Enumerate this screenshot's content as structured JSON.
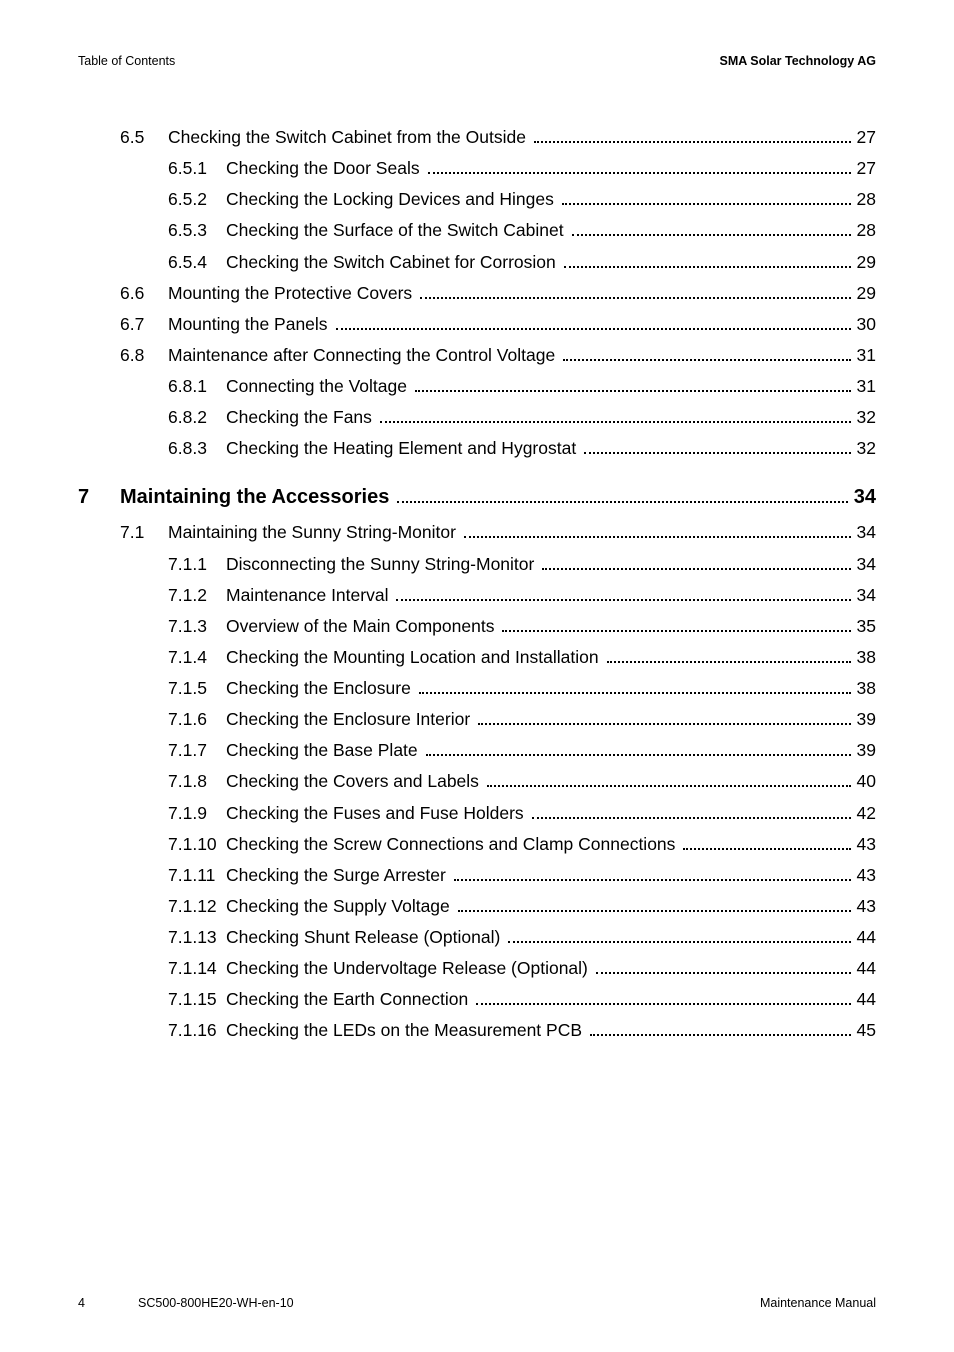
{
  "header": {
    "left": "Table of Contents",
    "right": "SMA Solar Technology AG"
  },
  "footer": {
    "page_number": "4",
    "doc_id": "SC500-800HE20-WH-en-10",
    "manual": "Maintenance Manual"
  },
  "colors": {
    "text": "#000000",
    "background": "#ffffff",
    "dots": "#000000"
  },
  "typography": {
    "body_fontsize_pt": 13,
    "heading_fontsize_pt": 15,
    "header_footer_fontsize_pt": 9.5,
    "font_family": "sans-serif",
    "heading_weight": "bold"
  },
  "toc": [
    {
      "level": 2,
      "num": "6.5",
      "title": "Checking the Switch Cabinet from the Outside",
      "page": "27"
    },
    {
      "level": 3,
      "num": "6.5.1",
      "title": "Checking the Door Seals",
      "page": "27"
    },
    {
      "level": 3,
      "num": "6.5.2",
      "title": "Checking the Locking Devices and Hinges",
      "page": "28"
    },
    {
      "level": 3,
      "num": "6.5.3",
      "title": "Checking the Surface of the Switch Cabinet",
      "page": "28"
    },
    {
      "level": 3,
      "num": "6.5.4",
      "title": "Checking the Switch Cabinet for Corrosion",
      "page": "29"
    },
    {
      "level": 2,
      "num": "6.6",
      "title": "Mounting the Protective Covers",
      "page": "29"
    },
    {
      "level": 2,
      "num": "6.7",
      "title": "Mounting the Panels",
      "page": "30"
    },
    {
      "level": 2,
      "num": "6.8",
      "title": "Maintenance after Connecting the Control Voltage",
      "page": "31"
    },
    {
      "level": 3,
      "num": "6.8.1",
      "title": "Connecting the Voltage",
      "page": "31"
    },
    {
      "level": 3,
      "num": "6.8.2",
      "title": "Checking the Fans",
      "page": "32"
    },
    {
      "level": 3,
      "num": "6.8.3",
      "title": "Checking the Heating Element and Hygrostat",
      "page": "32"
    },
    {
      "level": 1,
      "num": "7",
      "title": "Maintaining the Accessories",
      "page": "34"
    },
    {
      "level": 2,
      "num": "7.1",
      "title": "Maintaining the Sunny String-Monitor",
      "page": "34"
    },
    {
      "level": 3,
      "num": "7.1.1",
      "title": "Disconnecting the Sunny String-Monitor",
      "page": "34"
    },
    {
      "level": 3,
      "num": "7.1.2",
      "title": "Maintenance Interval",
      "page": "34"
    },
    {
      "level": 3,
      "num": "7.1.3",
      "title": "Overview of the Main Components",
      "page": "35"
    },
    {
      "level": 3,
      "num": "7.1.4",
      "title": "Checking the Mounting Location and Installation",
      "page": "38"
    },
    {
      "level": 3,
      "num": "7.1.5",
      "title": "Checking the Enclosure",
      "page": "38"
    },
    {
      "level": 3,
      "num": "7.1.6",
      "title": "Checking the Enclosure Interior",
      "page": "39"
    },
    {
      "level": 3,
      "num": "7.1.7",
      "title": "Checking the Base Plate",
      "page": "39"
    },
    {
      "level": 3,
      "num": "7.1.8",
      "title": "Checking the Covers and Labels",
      "page": "40"
    },
    {
      "level": 3,
      "num": "7.1.9",
      "title": "Checking the Fuses and Fuse Holders",
      "page": "42"
    },
    {
      "level": 3,
      "num": "7.1.10",
      "title": "Checking the Screw Connections and Clamp Connections",
      "page": "43"
    },
    {
      "level": 3,
      "num": "7.1.11",
      "title": "Checking the Surge Arrester",
      "page": "43"
    },
    {
      "level": 3,
      "num": "7.1.12",
      "title": "Checking the Supply Voltage",
      "page": "43"
    },
    {
      "level": 3,
      "num": "7.1.13",
      "title": "Checking Shunt Release (Optional)",
      "page": "44"
    },
    {
      "level": 3,
      "num": "7.1.14",
      "title": "Checking the Undervoltage Release (Optional)",
      "page": "44"
    },
    {
      "level": 3,
      "num": "7.1.15",
      "title": "Checking the Earth Connection",
      "page": "44"
    },
    {
      "level": 3,
      "num": "7.1.16",
      "title": "Checking the LEDs on the Measurement PCB",
      "page": "45"
    }
  ]
}
